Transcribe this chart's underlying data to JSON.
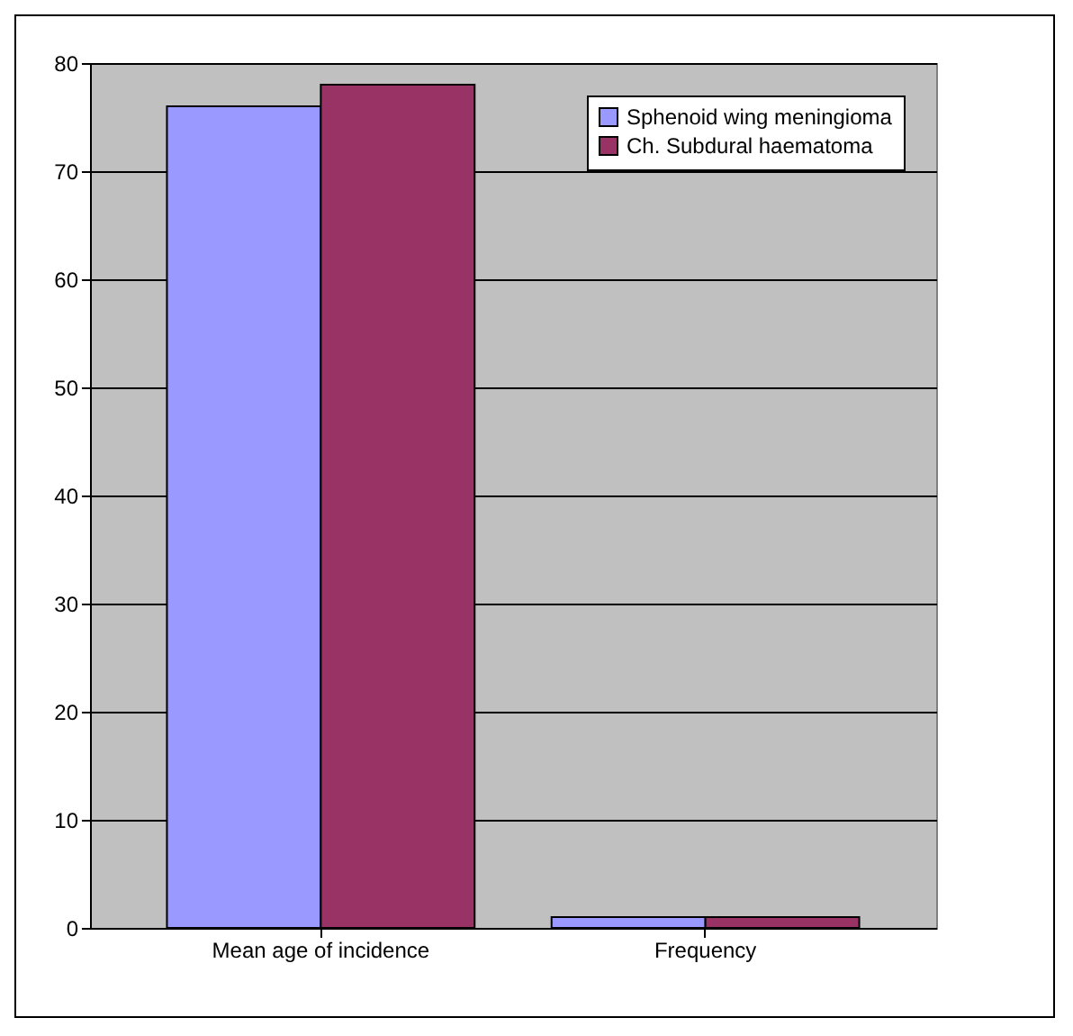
{
  "chart_data": {
    "type": "bar",
    "categories": [
      "Mean age of incidence",
      "Frequency"
    ],
    "series": [
      {
        "name": "Sphenoid wing meningioma",
        "color": "#9999ff",
        "values": [
          76,
          1
        ]
      },
      {
        "name": "Ch. Subdural haematoma",
        "color": "#993366",
        "values": [
          78,
          1
        ]
      }
    ],
    "ylim": [
      0,
      80
    ],
    "yticks": [
      0,
      10,
      20,
      30,
      40,
      50,
      60,
      70,
      80
    ],
    "grid": "y",
    "legend": "top right"
  }
}
